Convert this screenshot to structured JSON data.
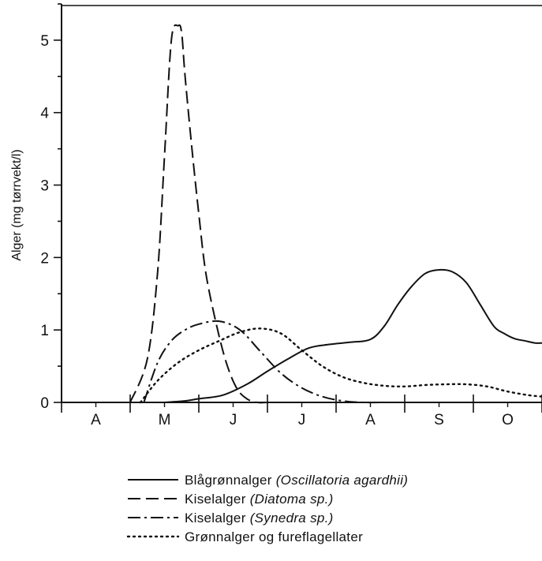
{
  "chart_data": {
    "type": "line",
    "title": "",
    "xlabel": "",
    "ylabel": "Alger (mg tørrvekt/l)",
    "categories": [
      "A",
      "M",
      "J",
      "J",
      "A",
      "S",
      "O"
    ],
    "x_range": [
      0,
      7
    ],
    "ylim": [
      0,
      5.5
    ],
    "y_ticks": [
      0,
      1,
      2,
      3,
      4,
      5
    ],
    "y_tick_labels": [
      "0",
      "1",
      "2",
      "3",
      "4",
      "5"
    ],
    "grid": false,
    "legend_position": "bottom",
    "series": [
      {
        "name": "Blågrønnalger (Oscillatoria agardhii)",
        "name_plain": "Blågrønnalger ",
        "name_italic": "(Oscillatoria agardhii)",
        "style": "solid",
        "x": [
          1.5,
          1.8,
          2.0,
          2.35,
          2.7,
          3.0,
          3.3,
          3.6,
          3.9,
          4.2,
          4.5,
          4.7,
          4.9,
          5.1,
          5.3,
          5.5,
          5.7,
          5.9,
          6.1,
          6.3,
          6.45,
          6.6,
          6.75,
          6.9,
          7.0
        ],
        "y": [
          0.0,
          0.02,
          0.05,
          0.1,
          0.25,
          0.43,
          0.6,
          0.75,
          0.8,
          0.83,
          0.87,
          1.05,
          1.35,
          1.6,
          1.78,
          1.83,
          1.8,
          1.65,
          1.35,
          1.05,
          0.95,
          0.88,
          0.85,
          0.82,
          0.82
        ]
      },
      {
        "name": "Kiselalger (Diatoma sp.)",
        "name_plain": "Kiselalger ",
        "name_italic": "(Diatoma sp.)",
        "style": "dashed",
        "x": [
          1.0,
          1.25,
          1.4,
          1.5,
          1.6,
          1.7,
          1.75,
          1.8,
          1.9,
          2.0,
          2.1,
          2.25,
          2.4,
          2.55,
          2.7,
          2.85,
          3.0
        ],
        "y": [
          0.0,
          0.6,
          1.8,
          3.4,
          5.0,
          5.2,
          5.1,
          4.5,
          3.5,
          2.6,
          1.8,
          1.1,
          0.55,
          0.2,
          0.05,
          0.0,
          0.0
        ]
      },
      {
        "name": "Kiselalger (Synedra sp.)",
        "name_plain": "Kiselalger ",
        "name_italic": "(Synedra sp.)",
        "style": "dashdot",
        "x": [
          1.2,
          1.4,
          1.6,
          1.8,
          2.0,
          2.3,
          2.6,
          2.9,
          3.2,
          3.5,
          3.8,
          4.1,
          4.4,
          4.7
        ],
        "y": [
          0.0,
          0.55,
          0.85,
          1.0,
          1.08,
          1.12,
          1.0,
          0.7,
          0.4,
          0.2,
          0.08,
          0.02,
          0.0,
          0.0
        ]
      },
      {
        "name": "Grønnalger og fureflagellater",
        "name_plain": "Grønnalger og fureflagellater",
        "name_italic": "",
        "style": "dotted",
        "x": [
          1.15,
          1.4,
          1.7,
          2.0,
          2.3,
          2.6,
          2.9,
          3.2,
          3.5,
          3.8,
          4.1,
          4.4,
          4.7,
          5.0,
          5.3,
          5.6,
          5.9,
          6.2,
          6.5,
          6.8,
          7.0
        ],
        "y": [
          0.0,
          0.3,
          0.55,
          0.72,
          0.85,
          0.97,
          1.02,
          0.95,
          0.72,
          0.5,
          0.35,
          0.27,
          0.23,
          0.22,
          0.24,
          0.25,
          0.25,
          0.22,
          0.15,
          0.1,
          0.08
        ]
      }
    ]
  }
}
